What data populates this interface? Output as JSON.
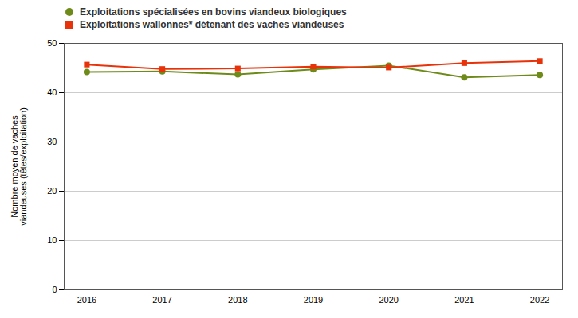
{
  "chart_data": {
    "type": "line",
    "x": [
      2016,
      2017,
      2018,
      2019,
      2020,
      2021,
      2022
    ],
    "series": [
      {
        "name": "Exploitations spécialisées en bovins viandeux biologiques",
        "color": "#6e8b1a",
        "marker": "circle",
        "values": [
          44.2,
          44.3,
          43.7,
          44.7,
          45.5,
          43.1,
          43.6
        ]
      },
      {
        "name": "Exploitations wallonnes* détenant des vaches viandeuses",
        "color": "#e8320a",
        "marker": "square",
        "values": [
          45.7,
          44.8,
          44.9,
          45.3,
          45.1,
          46.0,
          46.4
        ]
      }
    ],
    "y_label": "Nombre moyen de vaches\nviandeuses (têtes/exploitation)",
    "xlim": [
      2015.7,
      2022.3
    ],
    "xticks": [
      2016,
      2017,
      2018,
      2019,
      2020,
      2021,
      2022
    ],
    "ylim": [
      0,
      50
    ],
    "yticks": [
      0,
      10,
      20,
      30,
      40,
      50
    ],
    "grid": true,
    "legend": "upper left"
  }
}
